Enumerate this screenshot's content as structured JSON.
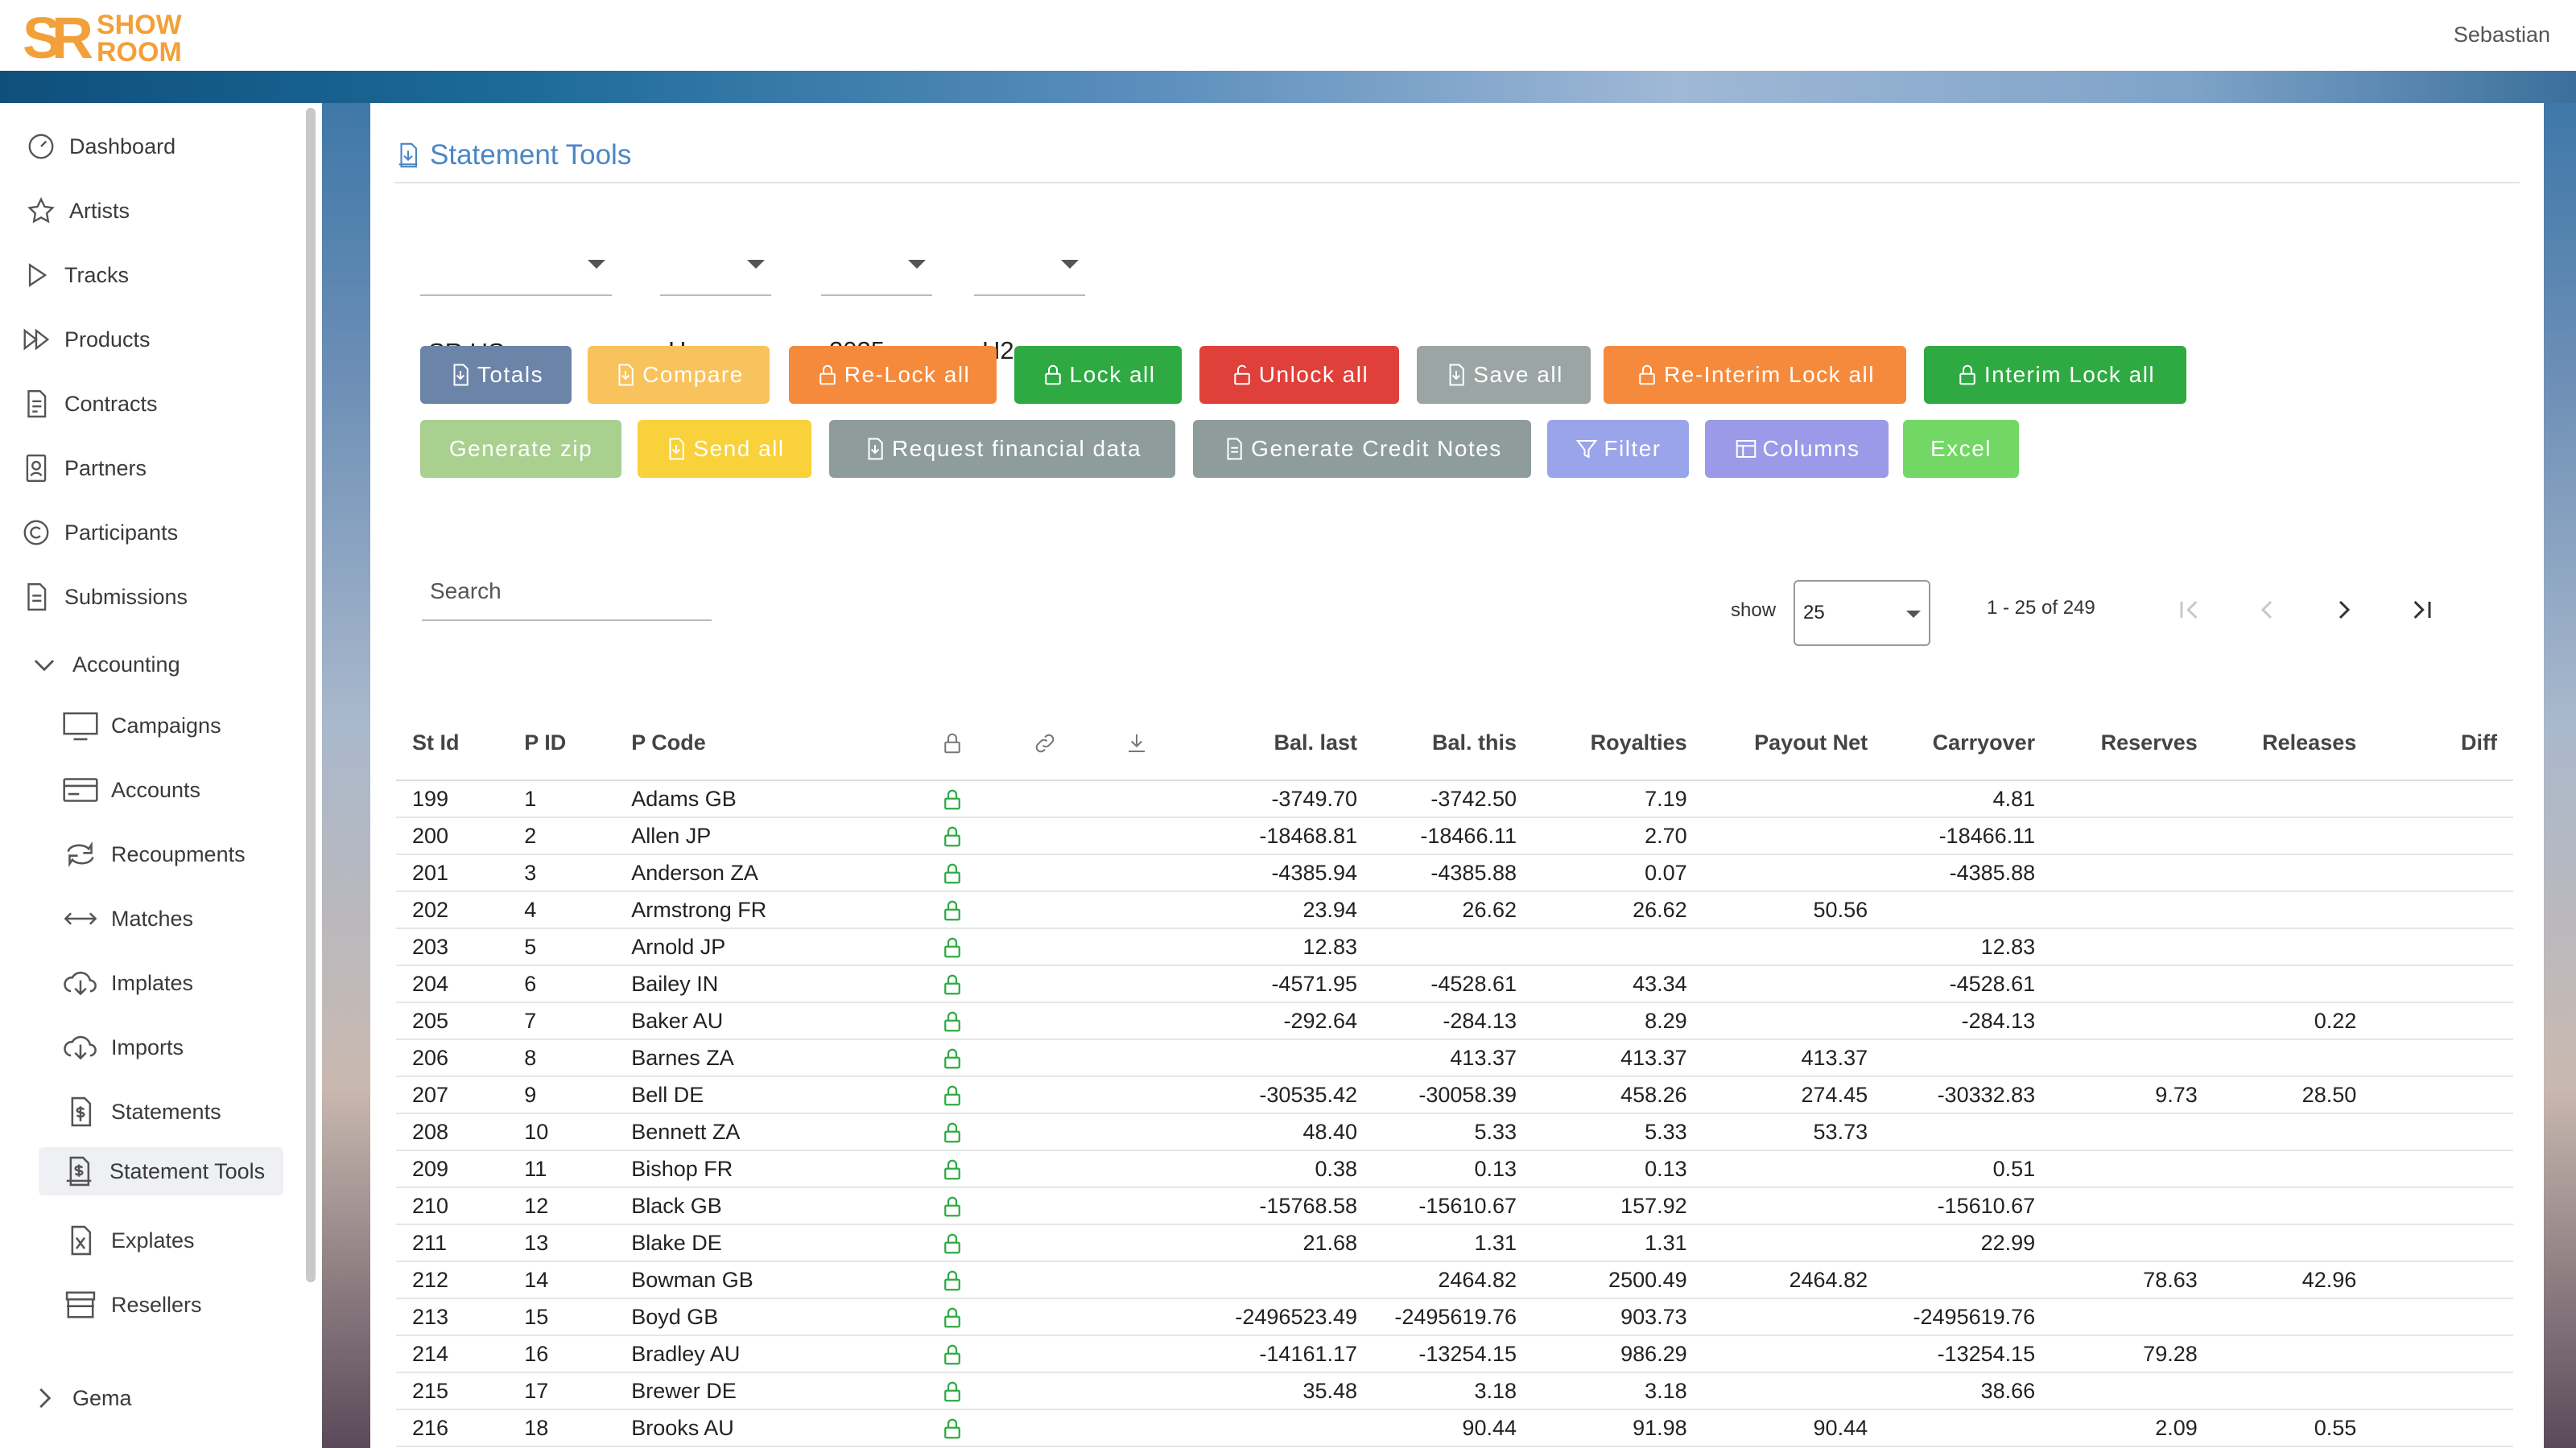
{
  "app": {
    "logo_line1": "SHOW",
    "logo_line2": "ROOM",
    "user": "Sebastian"
  },
  "sidebar": {
    "items": [
      {
        "label": "Dashboard",
        "icon": "dashboard-icon"
      },
      {
        "label": "Artists",
        "icon": "star-icon"
      },
      {
        "label": "Tracks",
        "icon": "play-icon"
      },
      {
        "label": "Products",
        "icon": "fast-forward-icon"
      },
      {
        "label": "Contracts",
        "icon": "contract-document-icon"
      },
      {
        "label": "Partners",
        "icon": "person-badge-icon"
      },
      {
        "label": "Participants",
        "icon": "copyright-icon"
      },
      {
        "label": "Submissions",
        "icon": "document-icon"
      },
      {
        "label": "Accounting",
        "icon": "chevron-down-icon"
      }
    ],
    "accounting_items": [
      {
        "label": "Campaigns",
        "icon": "monitor-icon"
      },
      {
        "label": "Accounts",
        "icon": "credit-card-icon"
      },
      {
        "label": "Recoupments",
        "icon": "repeat-icon"
      },
      {
        "label": "Matches",
        "icon": "arrows-horizontal-icon"
      },
      {
        "label": "Implates",
        "icon": "cloud-download-icon"
      },
      {
        "label": "Imports",
        "icon": "cloud-download-icon"
      },
      {
        "label": "Statements",
        "icon": "dollar-document-icon"
      },
      {
        "label": "Statement Tools",
        "icon": "statement-tools-icon"
      },
      {
        "label": "Explates",
        "icon": "excel-document-icon"
      },
      {
        "label": "Resellers",
        "icon": "store-icon"
      }
    ],
    "footer_item": {
      "label": "Gema",
      "icon": "chevron-right-icon"
    }
  },
  "page": {
    "title": "Statement Tools"
  },
  "filters": [
    {
      "value": "SR US"
    },
    {
      "value": "H"
    },
    {
      "value": "2025"
    },
    {
      "value": "H2"
    }
  ],
  "buttons_row1": [
    {
      "label": "Totals",
      "icon": "download-icon",
      "color": "#6b84a8"
    },
    {
      "label": "Compare",
      "icon": "download-icon",
      "color": "#f8c25c"
    },
    {
      "label": "Re-Lock all",
      "icon": "lock-icon",
      "color": "#f58a3c"
    },
    {
      "label": "Lock all",
      "icon": "lock-icon",
      "color": "#2faa42"
    },
    {
      "label": "Unlock all",
      "icon": "unlock-icon",
      "color": "#e0403a"
    },
    {
      "label": "Save all",
      "icon": "download-icon",
      "color": "#9aa5a4"
    },
    {
      "label": "Re-Interim Lock all",
      "icon": "lock-icon",
      "color": "#f58a3c"
    },
    {
      "label": "Interim Lock all",
      "icon": "lock-icon",
      "color": "#2faa42"
    }
  ],
  "buttons_row2": [
    {
      "label": "Generate zip",
      "icon": "",
      "color": "#a9d08f"
    },
    {
      "label": "Send all",
      "icon": "download-icon",
      "color": "#f9d13a"
    },
    {
      "label": "Request financial data",
      "icon": "download-icon",
      "color": "#8f9c9c"
    },
    {
      "label": "Generate Credit Notes",
      "icon": "document-icon",
      "color": "#8f9c9c"
    },
    {
      "label": "Filter",
      "icon": "filter-icon",
      "color": "#9aa4ea"
    },
    {
      "label": "Columns",
      "icon": "columns-icon",
      "color": "#9a9ae8"
    },
    {
      "label": "Excel",
      "icon": "",
      "color": "#73d766"
    }
  ],
  "search": {
    "placeholder": "Search"
  },
  "pagination": {
    "show_label": "show",
    "page_size": "25",
    "range": "1 - 25 of 249"
  },
  "table": {
    "headers": [
      "St Id",
      "P ID",
      "P Code",
      "",
      "",
      "",
      "Bal. last",
      "Bal. this",
      "Royalties",
      "Payout Net",
      "Carryover",
      "Reserves",
      "Releases",
      "Diff"
    ],
    "header_icons": [
      "lock-icon",
      "link-icon",
      "download-icon"
    ],
    "rows": [
      [
        "199",
        "1",
        "Adams GB",
        "-3749.70",
        "-3742.50",
        "7.19",
        "",
        "4.81",
        "",
        "",
        ""
      ],
      [
        "200",
        "2",
        "Allen JP",
        "-18468.81",
        "-18466.11",
        "2.70",
        "",
        "-18466.11",
        "",
        "",
        ""
      ],
      [
        "201",
        "3",
        "Anderson ZA",
        "-4385.94",
        "-4385.88",
        "0.07",
        "",
        "-4385.88",
        "",
        "",
        ""
      ],
      [
        "202",
        "4",
        "Armstrong FR",
        "23.94",
        "26.62",
        "26.62",
        "50.56",
        "",
        "",
        "",
        ""
      ],
      [
        "203",
        "5",
        "Arnold JP",
        "12.83",
        "",
        "",
        "",
        "12.83",
        "",
        "",
        ""
      ],
      [
        "204",
        "6",
        "Bailey IN",
        "-4571.95",
        "-4528.61",
        "43.34",
        "",
        "-4528.61",
        "",
        "",
        ""
      ],
      [
        "205",
        "7",
        "Baker AU",
        "-292.64",
        "-284.13",
        "8.29",
        "",
        "-284.13",
        "",
        "0.22",
        ""
      ],
      [
        "206",
        "8",
        "Barnes ZA",
        "",
        "413.37",
        "413.37",
        "413.37",
        "",
        "",
        "",
        ""
      ],
      [
        "207",
        "9",
        "Bell DE",
        "-30535.42",
        "-30058.39",
        "458.26",
        "274.45",
        "-30332.83",
        "9.73",
        "28.50",
        ""
      ],
      [
        "208",
        "10",
        "Bennett ZA",
        "48.40",
        "5.33",
        "5.33",
        "53.73",
        "",
        "",
        "",
        ""
      ],
      [
        "209",
        "11",
        "Bishop FR",
        "0.38",
        "0.13",
        "0.13",
        "",
        "0.51",
        "",
        "",
        ""
      ],
      [
        "210",
        "12",
        "Black GB",
        "-15768.58",
        "-15610.67",
        "157.92",
        "",
        "-15610.67",
        "",
        "",
        ""
      ],
      [
        "211",
        "13",
        "Blake DE",
        "21.68",
        "1.31",
        "1.31",
        "",
        "22.99",
        "",
        "",
        ""
      ],
      [
        "212",
        "14",
        "Bowman GB",
        "",
        "2464.82",
        "2500.49",
        "2464.82",
        "",
        "78.63",
        "42.96",
        ""
      ],
      [
        "213",
        "15",
        "Boyd GB",
        "-2496523.49",
        "-2495619.76",
        "903.73",
        "",
        "-2495619.76",
        "",
        "",
        ""
      ],
      [
        "214",
        "16",
        "Bradley AU",
        "-14161.17",
        "-13254.15",
        "986.29",
        "",
        "-13254.15",
        "79.28",
        "",
        ""
      ],
      [
        "215",
        "17",
        "Brewer DE",
        "35.48",
        "3.18",
        "3.18",
        "",
        "38.66",
        "",
        "",
        ""
      ],
      [
        "216",
        "18",
        "Brooks AU",
        "",
        "90.44",
        "91.98",
        "90.44",
        "",
        "2.09",
        "0.55",
        ""
      ]
    ]
  }
}
